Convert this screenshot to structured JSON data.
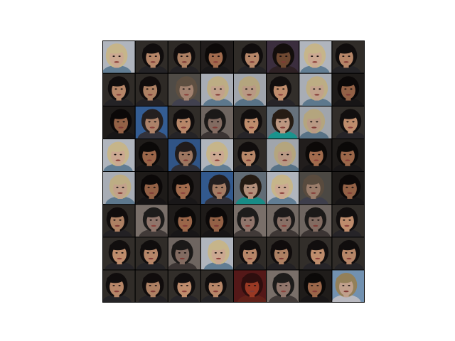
{
  "figure": {
    "rows": 8,
    "cols": 8,
    "frame_color": "#000000",
    "background": "#ffffff",
    "tiles": [
      [
        "blonde",
        "dark",
        "dark",
        "dark-low",
        "dark",
        "tan-dark",
        "blonde",
        "dark"
      ],
      [
        "dark",
        "dark",
        "blur",
        "blonde",
        "blonde",
        "dark",
        "blonde",
        "dark-low"
      ],
      [
        "dark-low",
        "bluebg",
        "dark",
        "gray",
        "dark",
        "tealbg",
        "blonde",
        "dark"
      ],
      [
        "blonde",
        "dark-low",
        "bluebg",
        "blonde",
        "dark",
        "blonde",
        "dark-low",
        "dark-low"
      ],
      [
        "blonde",
        "dark-low",
        "dark-low",
        "bluebg",
        "tealbg",
        "blonde",
        "blur",
        "dark-low"
      ],
      [
        "dark",
        "gray",
        "dark-low",
        "dark-low",
        "gray",
        "gray",
        "gray",
        "dark"
      ],
      [
        "dark",
        "dark",
        "gray",
        "blonde",
        "dark",
        "dark",
        "dark",
        "dark"
      ],
      [
        "dark",
        "dark",
        "dark",
        "dark",
        "redface",
        "gray",
        "dark-low",
        "skybg"
      ]
    ],
    "palettes": {
      "dark": {
        "bg": "#3a3530",
        "hair": "#141010",
        "skin": "#d9a07c",
        "shirt": "#2c2a2e"
      },
      "dark-low": {
        "bg": "#262220",
        "hair": "#0e0b0a",
        "skin": "#b87a58",
        "shirt": "#1d1b1c"
      },
      "blonde": {
        "bg": "#c9cfd8",
        "hair": "#e2cf9e",
        "skin": "#e8c0a6",
        "shirt": "#6f8fa8"
      },
      "bluebg": {
        "bg": "#3c6aa8",
        "hair": "#2a2424",
        "skin": "#c49478",
        "shirt": "#3a3a44"
      },
      "tealbg": {
        "bg": "#7a8794",
        "hair": "#2e2218",
        "skin": "#e0b49a",
        "shirt": "#1fb0a8"
      },
      "gray": {
        "bg": "#8a7f78",
        "hair": "#22201f",
        "skin": "#a3867a",
        "shirt": "#4a4240"
      },
      "blur": {
        "bg": "#5a5650",
        "hair": "#6b5a4a",
        "skin": "#b99580",
        "shirt": "#4a4a5a"
      },
      "redface": {
        "bg": "#6a1e1e",
        "hair": "#3a1212",
        "skin": "#c0482e",
        "shirt": "#7a2a20"
      },
      "skybg": {
        "bg": "#8fb6dc",
        "hair": "#b8a070",
        "skin": "#f0c8b0",
        "shirt": "#e8e8f0"
      },
      "tan-dark": {
        "bg": "#4a3a4e",
        "hair": "#18120f",
        "skin": "#8a5a3e",
        "shirt": "#3a2a2e"
      }
    }
  }
}
